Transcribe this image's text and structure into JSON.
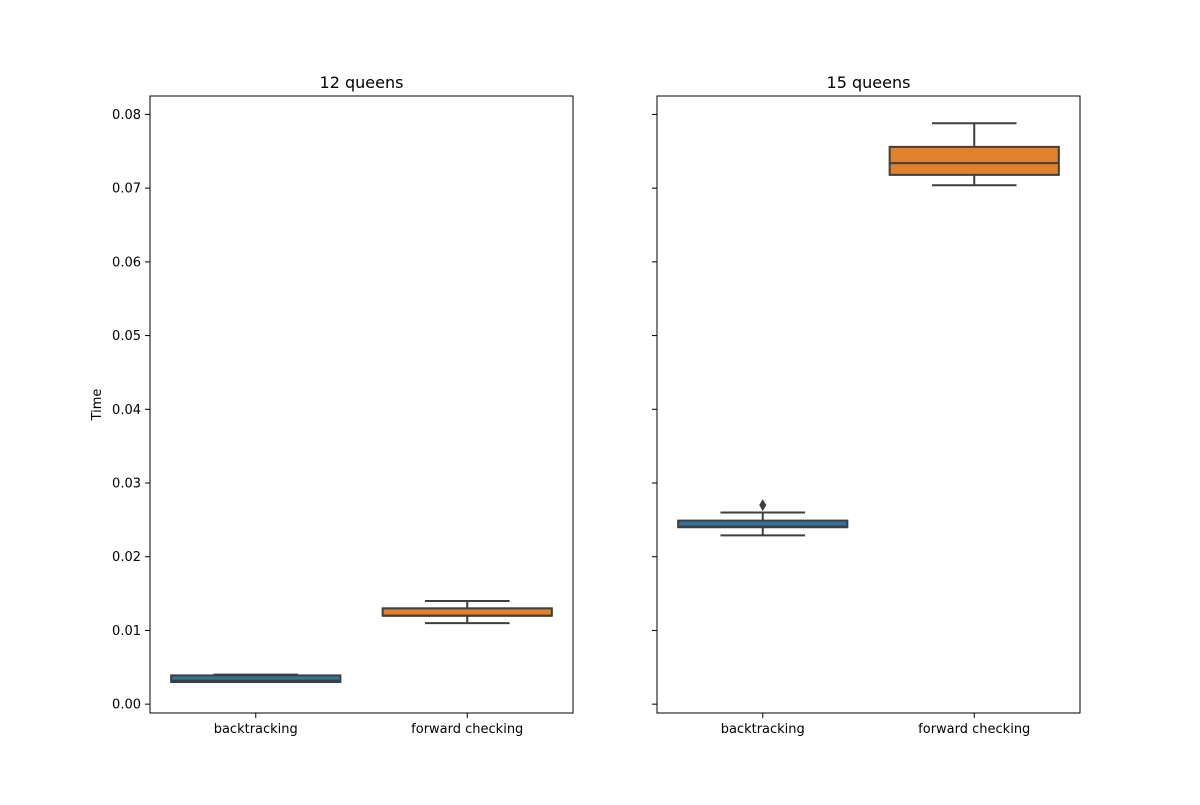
{
  "chart_data": [
    {
      "type": "box",
      "title": "12 queens",
      "ylabel": "Time",
      "xlabel": "",
      "categories": [
        "backtracking",
        "forward checking"
      ],
      "ylim": [
        -0.0012,
        0.0825
      ],
      "yticks": [
        "0.00",
        "0.01",
        "0.02",
        "0.03",
        "0.04",
        "0.05",
        "0.06",
        "0.07",
        "0.08"
      ],
      "grid": false,
      "boxes": [
        {
          "category": "backtracking",
          "whisker_low": 0.003,
          "q1": 0.003,
          "median": 0.0032,
          "q3": 0.0039,
          "whisker_high": 0.004,
          "outliers": [],
          "color": "#3274a1"
        },
        {
          "category": "forward checking",
          "whisker_low": 0.011,
          "q1": 0.012,
          "median": 0.012,
          "q3": 0.013,
          "whisker_high": 0.014,
          "outliers": [],
          "color": "#e1812c"
        }
      ]
    },
    {
      "type": "box",
      "title": "15 queens",
      "ylabel": "",
      "xlabel": "",
      "categories": [
        "backtracking",
        "forward checking"
      ],
      "ylim": [
        -0.0012,
        0.0825
      ],
      "yticks": [],
      "grid": false,
      "boxes": [
        {
          "category": "backtracking",
          "whisker_low": 0.0229,
          "q1": 0.024,
          "median": 0.0241,
          "q3": 0.0249,
          "whisker_high": 0.026,
          "outliers": [
            0.027
          ],
          "color": "#3274a1"
        },
        {
          "category": "forward checking",
          "whisker_low": 0.0704,
          "q1": 0.0718,
          "median": 0.0734,
          "q3": 0.0756,
          "whisker_high": 0.0788,
          "outliers": [],
          "color": "#e1812c"
        }
      ]
    }
  ]
}
